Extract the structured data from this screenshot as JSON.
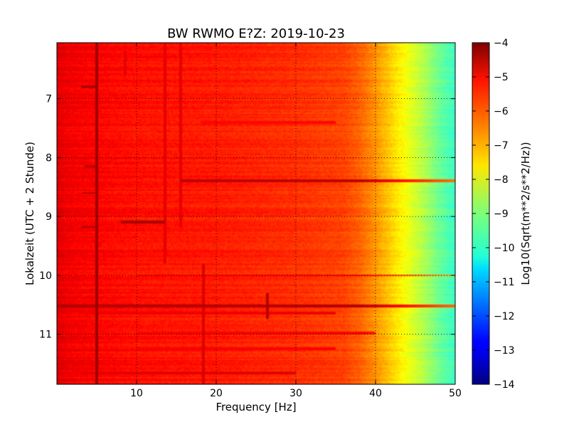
{
  "chart_data": {
    "type": "heatmap",
    "title": "BW RWMO E?Z: 2019-10-23",
    "xlabel": "Frequency [Hz]",
    "ylabel": "Lokalzeit (UTC + 2 Stunde)",
    "xlim": [
      0,
      50
    ],
    "ylim": [
      11.85,
      6.05
    ],
    "y_inverted": true,
    "x_ticks": [
      10,
      20,
      30,
      40,
      50
    ],
    "x_tick_labels": [
      "10",
      "20",
      "30",
      "40",
      "50"
    ],
    "y_ticks": [
      7,
      8,
      9,
      10,
      11
    ],
    "y_tick_labels": [
      "7",
      "8",
      "9",
      "10",
      "11"
    ],
    "grid": true,
    "colormap": "jet",
    "colorbar": {
      "label": "Log10(Sqrt(m**2/s**2/Hz))",
      "range": [
        -14,
        -4
      ],
      "ticks": [
        -4,
        -5,
        -6,
        -7,
        -8,
        -9,
        -10,
        -11,
        -12,
        -13,
        -14
      ],
      "tick_labels": [
        "−4",
        "−5",
        "−6",
        "−7",
        "−8",
        "−9",
        "−10",
        "−11",
        "−12",
        "−13",
        "−14"
      ]
    },
    "spectral_profile": {
      "frequency_hz": [
        0,
        1,
        3,
        10,
        20,
        30,
        36,
        38,
        40,
        42,
        44,
        46,
        48,
        50
      ],
      "log10_amplitude": [
        -4.9,
        -5.1,
        -5.2,
        -5.4,
        -5.5,
        -5.7,
        -5.9,
        -6.2,
        -6.7,
        -7.3,
        -7.9,
        -8.5,
        -9.2,
        -9.7
      ]
    },
    "vertical_lines_hz": [
      {
        "freq": 5.0,
        "t_start": 6.05,
        "t_end": 11.85,
        "intensity": -4.3
      },
      {
        "freq": 13.5,
        "t_start": 6.05,
        "t_end": 9.8,
        "intensity": -5.0
      },
      {
        "freq": 15.5,
        "t_start": 6.05,
        "t_end": 9.2,
        "intensity": -5.0
      },
      {
        "freq": 18.4,
        "t_start": 9.8,
        "t_end": 11.85,
        "intensity": -4.9
      },
      {
        "freq": 26.5,
        "t_start": 10.3,
        "t_end": 10.75,
        "intensity": -4.5
      },
      {
        "freq": 8.5,
        "t_start": 6.2,
        "t_end": 6.6,
        "intensity": -5.0
      }
    ],
    "horizontal_bands": [
      {
        "time": 6.8,
        "f_start": 3.0,
        "f_end": 5.0,
        "intensity": -4.5
      },
      {
        "time": 8.15,
        "f_start": 3.5,
        "f_end": 5.2,
        "intensity": -4.6
      },
      {
        "time": 8.4,
        "f_start": 15.5,
        "f_end": 50.0,
        "intensity": -4.6
      },
      {
        "time": 8.6,
        "f_start": 3.2,
        "f_end": 5.2,
        "intensity": -4.6
      },
      {
        "time": 9.1,
        "f_start": 8.0,
        "f_end": 13.5,
        "intensity": -4.4
      },
      {
        "time": 9.18,
        "f_start": 3.0,
        "f_end": 5.2,
        "intensity": -4.5
      },
      {
        "time": 10.0,
        "f_start": 10.0,
        "f_end": 50.0,
        "intensity": -5.2
      },
      {
        "time": 10.53,
        "f_start": 0.0,
        "f_end": 50.0,
        "intensity": -4.5
      },
      {
        "time": 10.65,
        "f_start": 3.0,
        "f_end": 35.0,
        "intensity": -5.1
      },
      {
        "time": 10.98,
        "f_start": 10.0,
        "f_end": 40.0,
        "intensity": -5.2
      },
      {
        "time": 11.25,
        "f_start": 10.0,
        "f_end": 35.0,
        "intensity": -5.2
      },
      {
        "time": 11.65,
        "f_start": 3.0,
        "f_end": 30.0,
        "intensity": -5.0
      },
      {
        "time": 6.3,
        "f_start": 10.0,
        "f_end": 15.0,
        "intensity": -5.2
      },
      {
        "time": 7.4,
        "f_start": 18.0,
        "f_end": 35.0,
        "intensity": -5.3
      }
    ]
  }
}
